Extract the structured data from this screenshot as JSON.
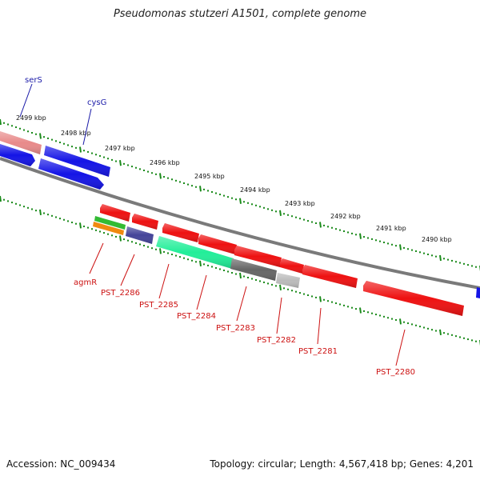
{
  "title": "Pseudomonas stutzeri A1501, complete genome",
  "accession": "Accession: NC_009434",
  "topology": "Topology: circular; Length: 4,567,418 bp; Genes: 4,201",
  "colors": {
    "background": "#ffffff",
    "backbone": "#7a7a7a",
    "tick": "#1a8a1a",
    "forward_label": "#1a1aa8",
    "reverse_label": "#cc1111",
    "blue_gene": "#1414e6",
    "red_gene": "#ee1111",
    "pink_gene": "#e88a8a",
    "teal_gene": "#22ee99",
    "navy_gene": "#444499",
    "dark_gray_gene": "#666666",
    "light_gray_gene": "#bbbbbb",
    "green_gene": "#33bb33",
    "orange_gene": "#f08a10"
  },
  "scale_labels": [
    "2499 kbp",
    "2498 kbp",
    "2497 kbp",
    "2496 kbp",
    "2495 kbp",
    "2494 kbp",
    "2493 kbp",
    "2492 kbp",
    "2491 kbp",
    "2490 kbp"
  ],
  "forward_gene_labels": [
    "serS",
    "cysG"
  ],
  "reverse_gene_labels": [
    "agmR",
    "PST_2286",
    "PST_2285",
    "PST_2284",
    "PST_2283",
    "PST_2282",
    "PST_2281",
    "PST_2280"
  ]
}
